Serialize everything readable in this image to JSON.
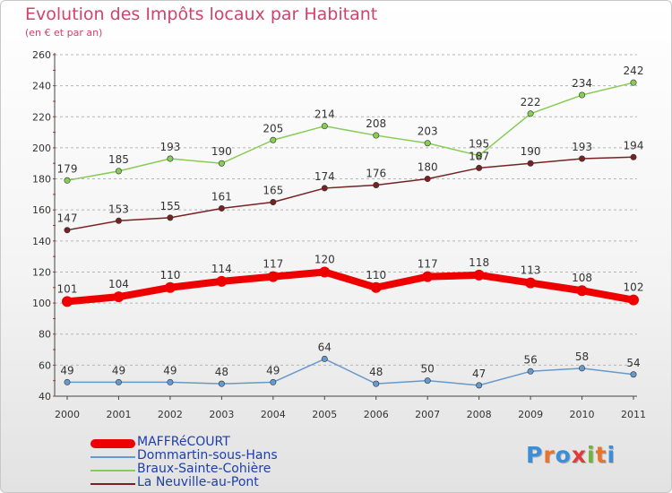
{
  "title": "Evolution des Impôts locaux par Habitant",
  "subtitle": "(en € et par an)",
  "logo": {
    "text": "Proxiti"
  },
  "chart_data": {
    "type": "line",
    "title": "Evolution des Impôts locaux par Habitant",
    "subtitle": "(en € et par an)",
    "xlabel": "",
    "ylabel": "",
    "ylim": [
      40,
      260
    ],
    "yticks": [
      40,
      60,
      80,
      100,
      120,
      140,
      160,
      180,
      200,
      220,
      240,
      260
    ],
    "grid": "horizontal-dashed",
    "legend_position": "bottom-left",
    "categories": [
      "2000",
      "2001",
      "2002",
      "2003",
      "2004",
      "2005",
      "2006",
      "2007",
      "2008",
      "2009",
      "2010",
      "2011"
    ],
    "series": [
      {
        "name": "MAFFRéCOURT",
        "color": "#ee0000",
        "values": [
          101,
          104,
          110,
          114,
          117,
          120,
          110,
          117,
          118,
          113,
          108,
          102
        ]
      },
      {
        "name": "Dommartin-sous-Hans",
        "color": "#6699cc",
        "values": [
          49,
          49,
          49,
          48,
          49,
          64,
          48,
          50,
          47,
          56,
          58,
          54
        ]
      },
      {
        "name": "Braux-Sainte-Cohière",
        "color": "#88cc55",
        "values": [
          179,
          185,
          193,
          190,
          205,
          214,
          208,
          203,
          195,
          222,
          234,
          242
        ]
      },
      {
        "name": "La Neuville-au-Pont",
        "color": "#772222",
        "values": [
          147,
          153,
          155,
          161,
          165,
          174,
          176,
          180,
          187,
          190,
          193,
          194
        ]
      }
    ]
  }
}
